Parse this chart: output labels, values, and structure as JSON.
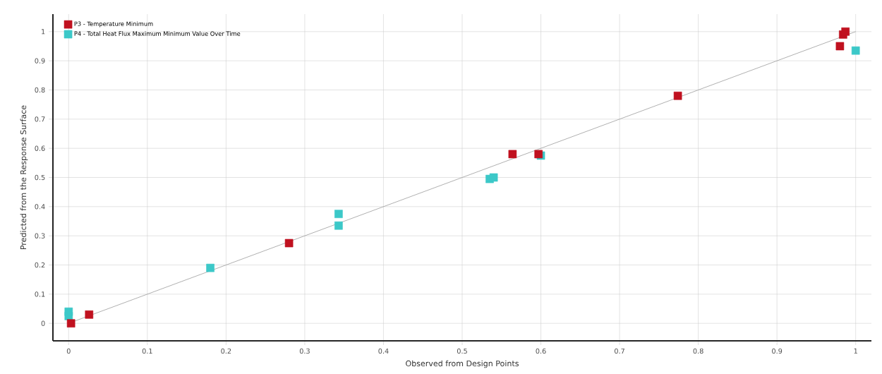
{
  "chart_data": {
    "type": "scatter",
    "xlabel": "Observed from Design Points",
    "ylabel": "Predicted from the Response Surface",
    "xlim": [
      -0.02,
      1.02
    ],
    "ylim": [
      -0.06,
      1.06
    ],
    "xticks": [
      0,
      0.1,
      0.2,
      0.3,
      0.4,
      0.5,
      0.6,
      0.7,
      0.8,
      0.9,
      1
    ],
    "yticks": [
      0,
      0.1,
      0.2,
      0.3,
      0.4,
      0.5,
      0.6,
      0.7,
      0.8,
      0.9,
      1
    ],
    "grid": true,
    "legend": "top left",
    "marker": "square",
    "series": [
      {
        "name": "P3 - Temperature Minimum",
        "color": "#c0111f",
        "x": [
          0.003,
          0.026,
          0.28,
          0.564,
          0.597,
          0.774,
          0.98,
          0.984,
          0.987
        ],
        "values": [
          0.0,
          0.03,
          0.275,
          0.58,
          0.58,
          0.78,
          0.95,
          0.99,
          1.0
        ]
      },
      {
        "name": "P4 - Total Heat Flux Maximum Minimum Value Over Time",
        "color": "#3cc8c8",
        "x": [
          0,
          0,
          0.18,
          0.343,
          0.343,
          0.535,
          0.54,
          0.6,
          1.0
        ],
        "values": [
          0.025,
          0.04,
          0.19,
          0.375,
          0.335,
          0.495,
          0.5,
          0.575,
          0.935
        ]
      },
      {
        "type": "line",
        "marker": "none",
        "color": "#a0a0a0",
        "x": [
          0,
          1
        ],
        "values": [
          0,
          1
        ]
      }
    ]
  }
}
